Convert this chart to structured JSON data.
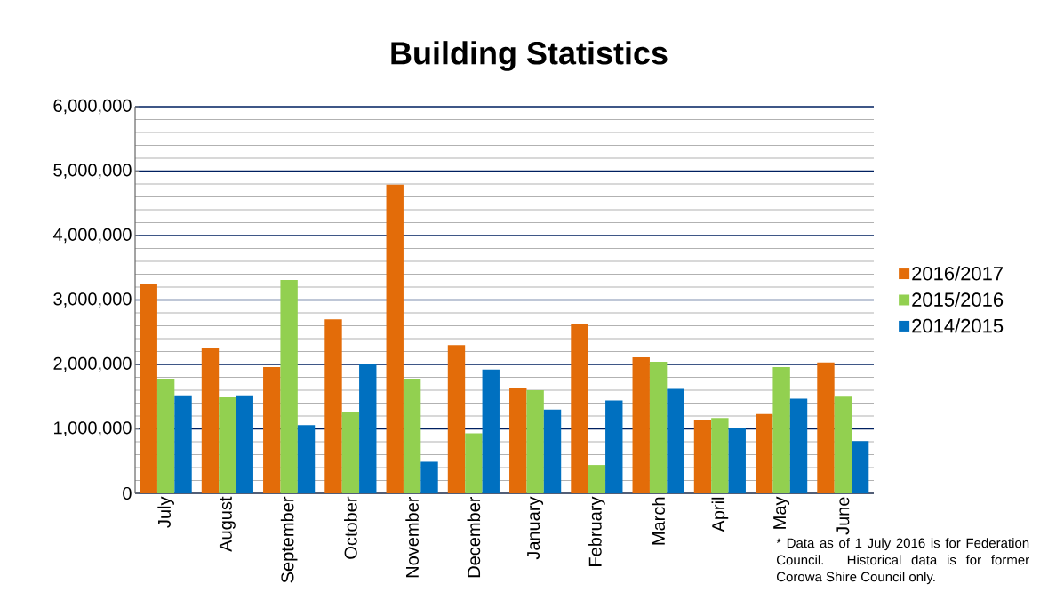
{
  "chart_data": {
    "type": "bar",
    "title": "Building Statistics",
    "categories": [
      "July",
      "August",
      "September",
      "October",
      "November",
      "December",
      "January",
      "February",
      "March",
      "April",
      "May",
      "June"
    ],
    "series": [
      {
        "name": "2016/2017",
        "color": "#e36c09",
        "values": [
          3240000,
          2260000,
          1960000,
          2700000,
          4790000,
          2300000,
          1630000,
          2630000,
          2110000,
          1130000,
          1230000,
          2030000
        ]
      },
      {
        "name": "2015/2016",
        "color": "#92d050",
        "values": [
          1780000,
          1490000,
          3310000,
          1260000,
          1780000,
          930000,
          1600000,
          440000,
          2040000,
          1170000,
          1960000,
          1500000
        ]
      },
      {
        "name": "2014/2015",
        "color": "#0070c0",
        "values": [
          1520000,
          1520000,
          1060000,
          2010000,
          490000,
          1920000,
          1300000,
          1440000,
          1620000,
          1010000,
          1470000,
          810000
        ]
      }
    ],
    "ylim": [
      0,
      6000000
    ],
    "yticks": [
      0,
      {
        "value": 1000000,
        "label": "1,000,000"
      },
      {
        "value": 2000000,
        "label": "2,000,000"
      },
      {
        "value": 3000000,
        "label": "3,000,000"
      },
      {
        "value": 4000000,
        "label": "4,000,000"
      },
      {
        "value": 5000000,
        "label": "5,000,000"
      },
      {
        "value": 6000000,
        "label": "6,000,000"
      }
    ],
    "grid": "y",
    "legend": "right",
    "annotations": [
      "* Data as of 1 July 2016 is for Federation Council. Historical data is for former Corowa Shire Council only."
    ]
  }
}
